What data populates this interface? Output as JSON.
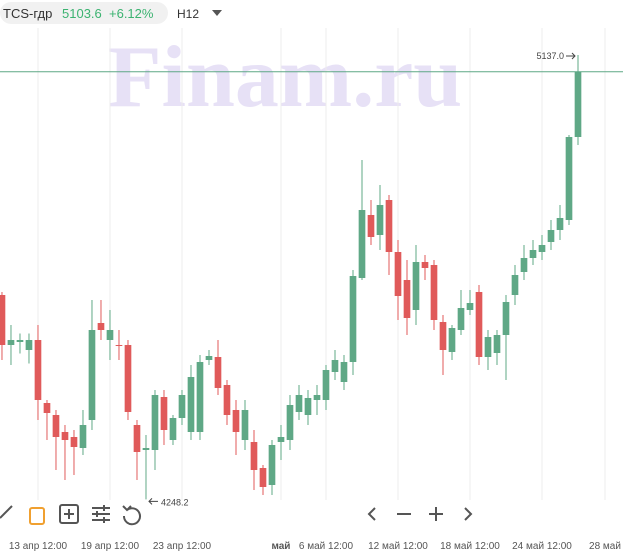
{
  "header": {
    "symbol": "TCS-гдр",
    "price": "5103.6",
    "change": "+6.12%",
    "interval": "H12",
    "watermark": "Finam.ru"
  },
  "chart_data": {
    "type": "candlestick",
    "categories": [
      null,
      null,
      null,
      null,
      null,
      null,
      null,
      null,
      null,
      null,
      null,
      null,
      null,
      null,
      null,
      null,
      null,
      null,
      null,
      null,
      null,
      null,
      null,
      null,
      null,
      null,
      null,
      null,
      null,
      null,
      null,
      null,
      null,
      null,
      null,
      null,
      null,
      null,
      null,
      null,
      null,
      null,
      null,
      null,
      null,
      null,
      null,
      null,
      null,
      null,
      null,
      null,
      null,
      null,
      null,
      null,
      null,
      null,
      null,
      null,
      null,
      null,
      null,
      null,
      null
    ],
    "open": [
      4657,
      4557,
      4563,
      4547,
      4567,
      4441,
      4417,
      4383,
      4373,
      4351,
      4407,
      4601,
      4567,
      4557,
      4557,
      4397,
      4347,
      4347,
      4453,
      4367,
      4411,
      4383,
      4383,
      4527,
      4533,
      4477,
      4427,
      4367,
      4363,
      4311,
      4277,
      4363,
      4367,
      4423,
      4417,
      4447,
      4447,
      4503,
      4483,
      4523,
      4691,
      4817,
      4777,
      4847,
      4743,
      4687,
      4627,
      4723,
      4717,
      4603,
      4543,
      4587,
      4627,
      4663,
      4533,
      4541,
      4577,
      4657,
      4703,
      4731,
      4743,
      4763,
      4787,
      4807,
      4973
    ],
    "high": [
      4663,
      4597,
      4580,
      4580,
      4597,
      4447,
      4427,
      4397,
      4387,
      4427,
      4647,
      4647,
      4627,
      4587,
      4567,
      4407,
      4377,
      4467,
      4467,
      4417,
      4467,
      4517,
      4537,
      4547,
      4567,
      4487,
      4447,
      4447,
      4387,
      4317,
      4367,
      4397,
      4457,
      4477,
      4467,
      4477,
      4517,
      4547,
      4537,
      4707,
      4927,
      4847,
      4877,
      4857,
      4767,
      4727,
      4757,
      4737,
      4727,
      4617,
      4597,
      4667,
      4667,
      4677,
      4587,
      4587,
      4657,
      4717,
      4757,
      4767,
      4777,
      4807,
      4837,
      4977,
      5137
    ],
    "low": [
      4527,
      4517,
      4540,
      4520,
      4407,
      4367,
      4307,
      4287,
      4297,
      4337,
      4387,
      4567,
      4527,
      4527,
      4407,
      4287,
      4248.2,
      4307,
      4357,
      4357,
      4397,
      4367,
      4367,
      4517,
      4457,
      4397,
      4337,
      4347,
      4267,
      4257,
      4257,
      4327,
      4347,
      4407,
      4397,
      4417,
      4427,
      4487,
      4467,
      4497,
      4687,
      4757,
      4747,
      4697,
      4607,
      4577,
      4597,
      4687,
      4587,
      4497,
      4527,
      4577,
      4617,
      4517,
      4507,
      4517,
      4487,
      4637,
      4687,
      4717,
      4727,
      4747,
      4767,
      4797,
      4957
    ],
    "close": [
      4557,
      4567,
      4567,
      4567,
      4447,
      4421,
      4373,
      4367,
      4353,
      4397,
      4587,
      4587,
      4587,
      4555,
      4423,
      4343,
      4351,
      4457,
      4387,
      4411,
      4457,
      4493,
      4523,
      4535,
      4471,
      4417,
      4383,
      4427,
      4307,
      4273,
      4357,
      4373,
      4437,
      4457,
      4451,
      4457,
      4507,
      4527,
      4523,
      4695,
      4827,
      4773,
      4837,
      4743,
      4655,
      4611,
      4723,
      4711,
      4607,
      4547,
      4591,
      4631,
      4641,
      4533,
      4573,
      4577,
      4643,
      4697,
      4731,
      4747,
      4757,
      4787,
      4811,
      4973,
      5103.6
    ],
    "up_color": "#5fa886",
    "down_color": "#e05a5a",
    "ylim": [
      4187,
      5197
    ],
    "xlim": [
      -0.22,
      69
    ],
    "xticks": [
      {
        "value": 4,
        "label": "13 апр 12:00"
      },
      {
        "value": 12,
        "label": "19 апр 12:00"
      },
      {
        "value": 20,
        "label": "23 апр 12:00"
      },
      {
        "value": 31,
        "label": "май"
      },
      {
        "value": 36,
        "label": "6 май 12:00"
      },
      {
        "value": 44,
        "label": "12 май 12:00"
      },
      {
        "value": 52,
        "label": "18 май 12:00"
      },
      {
        "value": 60,
        "label": "24 май 12:00"
      },
      {
        "value": 67,
        "label": "28 май"
      }
    ],
    "annotations": [
      {
        "value": 5137,
        "label": "5137.0"
      },
      {
        "value": 4248.2,
        "label": "4248.2"
      }
    ],
    "grid": true
  }
}
